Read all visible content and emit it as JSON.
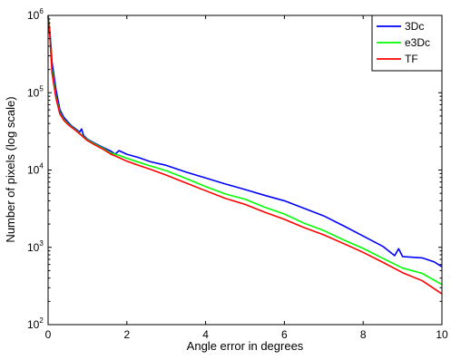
{
  "chart_data": {
    "type": "line",
    "title": "",
    "xlabel": "Angle error in degrees",
    "ylabel": "Number of pixels (log scale)",
    "xlim": [
      0,
      10
    ],
    "ylim": [
      100,
      1000000
    ],
    "y_scale": "log",
    "grid": false,
    "legend_position": "top-right",
    "x_ticks": [
      {
        "value": 0,
        "label": "0"
      },
      {
        "value": 2,
        "label": "2"
      },
      {
        "value": 4,
        "label": "4"
      },
      {
        "value": 6,
        "label": "6"
      },
      {
        "value": 8,
        "label": "8"
      },
      {
        "value": 10,
        "label": "10"
      }
    ],
    "y_ticks": [
      {
        "value": 100,
        "base": "10",
        "exp": "2"
      },
      {
        "value": 1000,
        "base": "10",
        "exp": "3"
      },
      {
        "value": 10000,
        "base": "10",
        "exp": "4"
      },
      {
        "value": 100000,
        "base": "10",
        "exp": "5"
      },
      {
        "value": 1000000,
        "base": "10",
        "exp": "6"
      }
    ],
    "series": [
      {
        "name": "3Dc",
        "color": "#0000ff",
        "x": [
          0,
          0.05,
          0.1,
          0.2,
          0.3,
          0.4,
          0.5,
          0.6,
          0.7,
          0.8,
          0.85,
          0.9,
          1.0,
          1.2,
          1.4,
          1.6,
          1.7,
          1.8,
          2.0,
          2.3,
          2.6,
          3.0,
          3.5,
          4.0,
          4.5,
          5.0,
          5.5,
          6.0,
          6.5,
          7.0,
          7.5,
          8.0,
          8.5,
          8.8,
          8.9,
          9.0,
          9.5,
          9.8,
          10.0
        ],
        "values": [
          1000000,
          600000,
          250000,
          110000,
          60000,
          48000,
          42000,
          37000,
          34000,
          31000,
          34000,
          28000,
          25000,
          22000,
          19500,
          17500,
          16000,
          17800,
          16000,
          14500,
          12800,
          11500,
          9400,
          7900,
          6600,
          5600,
          4700,
          4000,
          3200,
          2550,
          1900,
          1400,
          1030,
          780,
          960,
          760,
          730,
          650,
          560
        ]
      },
      {
        "name": "e3Dc",
        "color": "#00ff00",
        "x": [
          0,
          0.05,
          0.1,
          0.2,
          0.3,
          0.4,
          0.5,
          0.6,
          0.7,
          0.8,
          0.9,
          1.0,
          1.2,
          1.4,
          1.6,
          1.8,
          2.0,
          2.3,
          2.6,
          3.0,
          3.5,
          4.0,
          4.5,
          5.0,
          5.5,
          6.0,
          6.5,
          7.0,
          7.5,
          8.0,
          8.5,
          9.0,
          9.5,
          10.0
        ],
        "values": [
          980000,
          550000,
          200000,
          90000,
          55000,
          45000,
          40000,
          36000,
          33000,
          30000,
          27000,
          24500,
          21500,
          19000,
          16500,
          15500,
          14200,
          12600,
          11300,
          9800,
          7800,
          6100,
          4900,
          4200,
          3300,
          2700,
          2050,
          1650,
          1250,
          970,
          720,
          540,
          460,
          330
        ]
      },
      {
        "name": "TF",
        "color": "#ff0000",
        "x": [
          0,
          0.05,
          0.1,
          0.2,
          0.3,
          0.4,
          0.5,
          0.6,
          0.7,
          0.8,
          0.9,
          1.0,
          1.2,
          1.4,
          1.6,
          1.8,
          2.0,
          2.3,
          2.6,
          3.0,
          3.5,
          4.0,
          4.5,
          5.0,
          5.5,
          6.0,
          6.5,
          7.0,
          7.5,
          8.0,
          8.5,
          9.0,
          9.5,
          10.0
        ],
        "values": [
          950000,
          500000,
          180000,
          85000,
          53000,
          44000,
          39000,
          35500,
          32500,
          29500,
          26500,
          24000,
          21000,
          18500,
          16000,
          14500,
          13000,
          11500,
          10200,
          8600,
          6800,
          5400,
          4300,
          3600,
          2850,
          2300,
          1800,
          1450,
          1120,
          860,
          640,
          470,
          370,
          250
        ]
      }
    ]
  }
}
